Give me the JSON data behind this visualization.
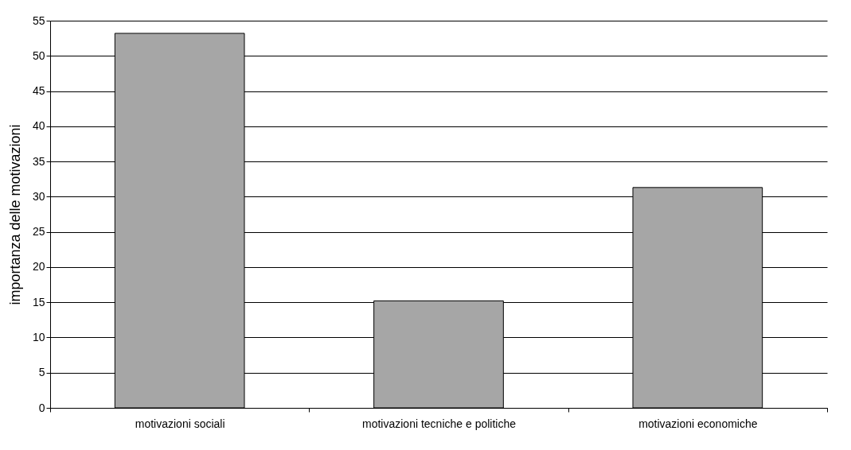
{
  "chart_data": {
    "type": "bar",
    "ylabel": "importanza delle motivazioni",
    "categories": [
      "motivazioni sociali",
      "motivazioni tecniche e politiche",
      "motivazioni economiche"
    ],
    "values": [
      53.2,
      15.2,
      31.3
    ],
    "color": "#a6a6a6",
    "ylim": [
      0,
      55
    ],
    "yticks": [
      0,
      5,
      10,
      15,
      20,
      25,
      30,
      35,
      40,
      45,
      50,
      55
    ],
    "grid": "y"
  }
}
